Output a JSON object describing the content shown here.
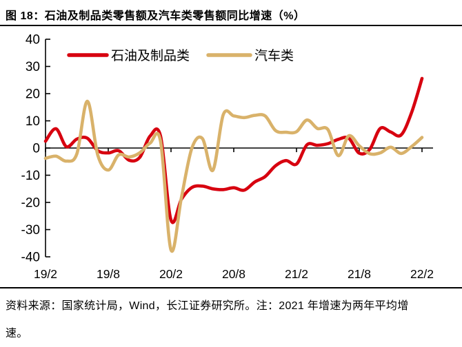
{
  "title": "图 18：石油及制品类零售额及汽车类零售额同比增速（%）",
  "footer": {
    "line1": "资料来源：国家统计局，Wind，长江证券研究所。注：2021 年增速为两年平均增",
    "line2": "速。"
  },
  "chart_data": {
    "type": "line",
    "title": "",
    "xlabel": "",
    "ylabel": "",
    "ylim": [
      -40,
      40
    ],
    "y_ticks": [
      40,
      30,
      20,
      10,
      0,
      -10,
      -20,
      -30,
      -40
    ],
    "x_tick_labels": [
      "19/2",
      "19/8",
      "20/2",
      "20/8",
      "21/2",
      "21/8",
      "22/2"
    ],
    "x_tick_month_index": [
      0,
      6,
      12,
      18,
      24,
      30,
      36
    ],
    "grid": "off",
    "legend_position": "top-center",
    "axis_color": "#000000",
    "months": [
      "2019-02",
      "2019-03",
      "2019-04",
      "2019-05",
      "2019-06",
      "2019-07",
      "2019-08",
      "2019-09",
      "2019-10",
      "2019-11",
      "2019-12",
      "2020-01",
      "2020-02",
      "2020-03",
      "2020-04",
      "2020-05",
      "2020-06",
      "2020-07",
      "2020-08",
      "2020-09",
      "2020-10",
      "2020-11",
      "2020-12",
      "2021-01",
      "2021-02",
      "2021-03",
      "2021-04",
      "2021-05",
      "2021-06",
      "2021-07",
      "2021-08",
      "2021-09",
      "2021-10",
      "2021-11",
      "2021-12",
      "2022-01",
      "2022-02"
    ],
    "series": [
      {
        "name": "石油及制品类",
        "color": "#d7000f",
        "values": [
          2.5,
          7.1,
          0.5,
          3.3,
          3.6,
          -1.0,
          -1.8,
          -1.0,
          -4.5,
          -3.5,
          4.4,
          4.4,
          -26.5,
          -18.8,
          -14.5,
          -14.0,
          -15.0,
          -15.3,
          -14.6,
          -15.5,
          -12.5,
          -10.5,
          -6.5,
          -4.6,
          -5.9,
          1.2,
          1.0,
          1.6,
          3.2,
          3.6,
          -1.9,
          -0.5,
          7.2,
          5.9,
          4.8,
          13.0,
          25.6
        ]
      },
      {
        "name": "汽车类",
        "color": "#d9b26a",
        "values": [
          -3.8,
          -3.0,
          -4.8,
          -2.1,
          17.2,
          -2.6,
          -8.1,
          -2.5,
          -3.3,
          -1.8,
          1.8,
          2.5,
          -37.5,
          -18.1,
          0.0,
          3.5,
          -8.2,
          12.3,
          11.8,
          11.2,
          12.0,
          11.8,
          6.4,
          5.8,
          6.0,
          10.3,
          7.2,
          6.8,
          -2.8,
          4.5,
          0.8,
          -2.1,
          -1.8,
          0.3,
          -2.0,
          0.5,
          3.9
        ]
      }
    ]
  }
}
